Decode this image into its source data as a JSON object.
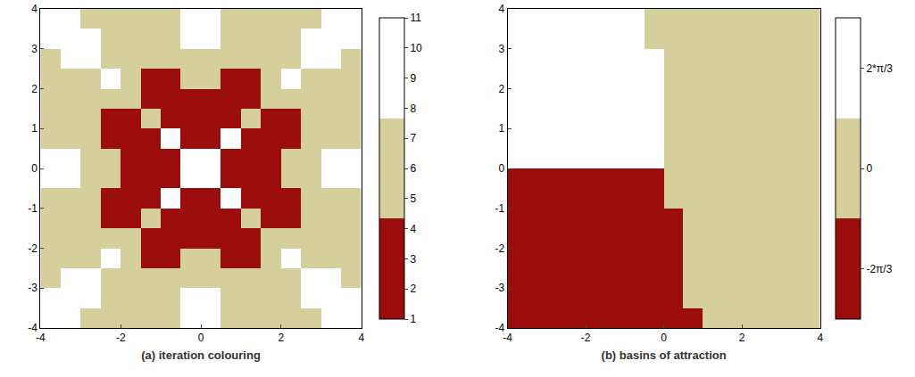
{
  "chart_data": [
    {
      "type": "heatmap",
      "xlabel": "(a) iteration colouring",
      "xlim": [
        -4,
        4
      ],
      "xticks": [
        -4,
        -2,
        0,
        2,
        4
      ],
      "ylim": [
        -4,
        4
      ],
      "yticks": [
        -4,
        -3,
        -2,
        -1,
        0,
        1,
        2,
        3,
        4
      ],
      "colors": [
        "#9b0d0d",
        "#d5cf9b",
        "#ffffff"
      ],
      "colorbar": {
        "range": [
          1,
          11
        ],
        "ticks": [
          1,
          2,
          3,
          4,
          5,
          6,
          7,
          8,
          9,
          10,
          11
        ]
      },
      "x": [
        -3.75,
        -3.25,
        -2.75,
        -2.25,
        -1.75,
        -1.25,
        -0.75,
        -0.25,
        0.25,
        0.75,
        1.25,
        1.75,
        2.25,
        2.75,
        3.25,
        3.75
      ],
      "y": [
        -3.75,
        -3.25,
        -2.75,
        -2.25,
        -1.75,
        -1.25,
        -0.75,
        -0.25,
        0.25,
        0.75,
        1.25,
        1.75,
        2.25,
        2.75,
        3.25,
        3.75
      ],
      "z": [
        [
          10,
          10,
          6,
          6,
          6,
          6,
          6,
          10,
          10,
          6,
          6,
          6,
          6,
          6,
          10,
          10
        ],
        [
          10,
          10,
          10,
          6,
          6,
          6,
          6,
          10,
          10,
          6,
          6,
          6,
          6,
          10,
          10,
          10
        ],
        [
          6,
          10,
          10,
          6,
          6,
          6,
          6,
          6,
          6,
          6,
          6,
          6,
          6,
          10,
          10,
          6
        ],
        [
          6,
          6,
          6,
          10,
          6,
          2,
          2,
          6,
          6,
          2,
          2,
          6,
          10,
          6,
          6,
          6
        ],
        [
          6,
          6,
          6,
          6,
          6,
          2,
          2,
          2,
          2,
          2,
          2,
          6,
          6,
          6,
          6,
          6
        ],
        [
          6,
          6,
          6,
          2,
          2,
          6,
          2,
          2,
          2,
          2,
          6,
          2,
          2,
          6,
          6,
          6
        ],
        [
          6,
          6,
          6,
          2,
          2,
          2,
          10,
          2,
          2,
          10,
          2,
          2,
          2,
          6,
          6,
          6
        ],
        [
          10,
          10,
          6,
          6,
          2,
          2,
          2,
          10,
          10,
          2,
          2,
          2,
          6,
          6,
          10,
          10
        ],
        [
          10,
          10,
          6,
          6,
          2,
          2,
          2,
          10,
          10,
          2,
          2,
          2,
          6,
          6,
          10,
          10
        ],
        [
          6,
          6,
          6,
          2,
          2,
          2,
          10,
          2,
          2,
          10,
          2,
          2,
          2,
          6,
          6,
          6
        ],
        [
          6,
          6,
          6,
          2,
          2,
          6,
          2,
          2,
          2,
          2,
          6,
          2,
          2,
          6,
          6,
          6
        ],
        [
          6,
          6,
          6,
          6,
          6,
          2,
          2,
          2,
          2,
          2,
          2,
          6,
          6,
          6,
          6,
          6
        ],
        [
          6,
          6,
          6,
          10,
          6,
          2,
          2,
          6,
          6,
          2,
          2,
          6,
          10,
          6,
          6,
          6
        ],
        [
          6,
          10,
          10,
          6,
          6,
          6,
          6,
          6,
          6,
          6,
          6,
          6,
          6,
          10,
          10,
          6
        ],
        [
          10,
          10,
          10,
          6,
          6,
          6,
          6,
          10,
          10,
          6,
          6,
          6,
          6,
          10,
          10,
          10
        ],
        [
          10,
          10,
          6,
          6,
          6,
          6,
          6,
          10,
          10,
          6,
          6,
          6,
          6,
          6,
          10,
          10
        ]
      ]
    },
    {
      "type": "heatmap",
      "xlabel": "(b) basins of attraction",
      "xlim": [
        -4,
        4
      ],
      "xticks": [
        -4,
        -2,
        0,
        2,
        4
      ],
      "ylim": [
        -4,
        4
      ],
      "yticks": [
        -4,
        -3,
        -2,
        -1,
        0,
        1,
        2,
        3,
        4
      ],
      "colors": [
        "#9b0d0d",
        "#d5cf9b",
        "#ffffff"
      ],
      "colorbar": {
        "range": [
          -3.1416,
          3.1416
        ],
        "ticks": [
          {
            "value": -2.0944,
            "label": "-2π/3"
          },
          0,
          {
            "value": 2.0944,
            "label": "2*π/3"
          }
        ]
      },
      "x": [
        -3.75,
        -3.25,
        -2.75,
        -2.25,
        -1.75,
        -1.25,
        -0.75,
        -0.25,
        0.25,
        0.75,
        1.25,
        1.75,
        2.25,
        2.75,
        3.25,
        3.75
      ],
      "y": [
        -3.75,
        -3.25,
        -2.75,
        -2.25,
        -1.75,
        -1.25,
        -0.75,
        -0.25,
        0.25,
        0.75,
        1.25,
        1.75,
        2.25,
        2.75,
        3.25,
        3.75
      ],
      "z": [
        [
          -2.0944,
          -2.0944,
          -2.0944,
          -2.0944,
          -2.0944,
          -2.0944,
          -2.0944,
          -2.0944,
          -2.0944,
          -2.0944,
          0,
          0,
          0,
          0,
          0,
          0
        ],
        [
          -2.0944,
          -2.0944,
          -2.0944,
          -2.0944,
          -2.0944,
          -2.0944,
          -2.0944,
          -2.0944,
          -2.0944,
          0,
          0,
          0,
          0,
          0,
          0,
          0
        ],
        [
          -2.0944,
          -2.0944,
          -2.0944,
          -2.0944,
          -2.0944,
          -2.0944,
          -2.0944,
          -2.0944,
          -2.0944,
          0,
          0,
          0,
          0,
          0,
          0,
          0
        ],
        [
          -2.0944,
          -2.0944,
          -2.0944,
          -2.0944,
          -2.0944,
          -2.0944,
          -2.0944,
          -2.0944,
          -2.0944,
          0,
          0,
          0,
          0,
          0,
          0,
          0
        ],
        [
          -2.0944,
          -2.0944,
          -2.0944,
          -2.0944,
          -2.0944,
          -2.0944,
          -2.0944,
          -2.0944,
          -2.0944,
          0,
          0,
          0,
          0,
          0,
          0,
          0
        ],
        [
          -2.0944,
          -2.0944,
          -2.0944,
          -2.0944,
          -2.0944,
          -2.0944,
          -2.0944,
          -2.0944,
          -2.0944,
          0,
          0,
          0,
          0,
          0,
          0,
          0
        ],
        [
          -2.0944,
          -2.0944,
          -2.0944,
          -2.0944,
          -2.0944,
          -2.0944,
          -2.0944,
          -2.0944,
          0,
          0,
          0,
          0,
          0,
          0,
          0,
          0
        ],
        [
          -2.0944,
          -2.0944,
          -2.0944,
          -2.0944,
          -2.0944,
          -2.0944,
          -2.0944,
          -2.0944,
          0,
          0,
          0,
          0,
          0,
          0,
          0,
          0
        ],
        [
          2.0944,
          2.0944,
          2.0944,
          2.0944,
          2.0944,
          2.0944,
          2.0944,
          2.0944,
          0,
          0,
          0,
          0,
          0,
          0,
          0,
          0
        ],
        [
          2.0944,
          2.0944,
          2.0944,
          2.0944,
          2.0944,
          2.0944,
          2.0944,
          2.0944,
          0,
          0,
          0,
          0,
          0,
          0,
          0,
          0
        ],
        [
          2.0944,
          2.0944,
          2.0944,
          2.0944,
          2.0944,
          2.0944,
          2.0944,
          2.0944,
          0,
          0,
          0,
          0,
          0,
          0,
          0,
          0
        ],
        [
          2.0944,
          2.0944,
          2.0944,
          2.0944,
          2.0944,
          2.0944,
          2.0944,
          2.0944,
          0,
          0,
          0,
          0,
          0,
          0,
          0,
          0
        ],
        [
          2.0944,
          2.0944,
          2.0944,
          2.0944,
          2.0944,
          2.0944,
          2.0944,
          2.0944,
          0,
          0,
          0,
          0,
          0,
          0,
          0,
          0
        ],
        [
          2.0944,
          2.0944,
          2.0944,
          2.0944,
          2.0944,
          2.0944,
          2.0944,
          2.0944,
          0,
          0,
          0,
          0,
          0,
          0,
          0,
          0
        ],
        [
          2.0944,
          2.0944,
          2.0944,
          2.0944,
          2.0944,
          2.0944,
          2.0944,
          0,
          0,
          0,
          0,
          0,
          0,
          0,
          0,
          0
        ],
        [
          2.0944,
          2.0944,
          2.0944,
          2.0944,
          2.0944,
          2.0944,
          2.0944,
          0,
          0,
          0,
          0,
          0,
          0,
          0,
          0,
          0
        ]
      ]
    }
  ]
}
